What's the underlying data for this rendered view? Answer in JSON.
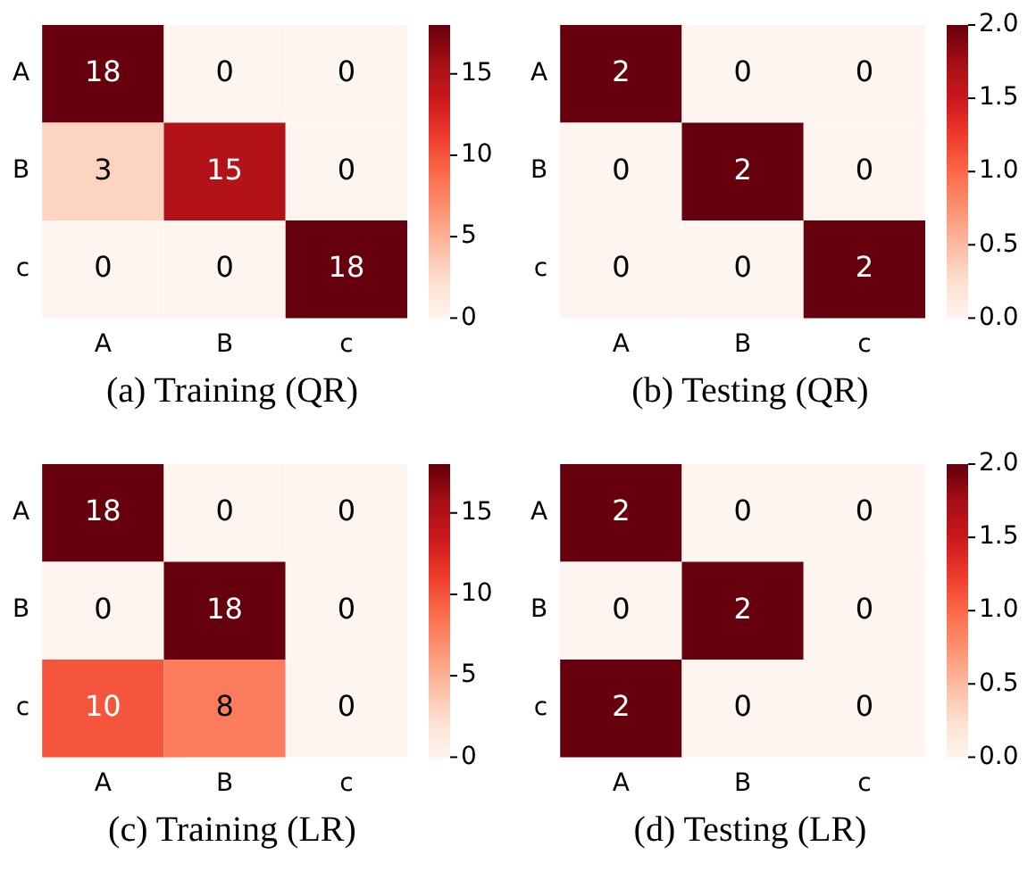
{
  "chart_data": [
    {
      "type": "heatmap",
      "annotations": [
        "(a)  Training (QR)"
      ],
      "categories": [
        "A",
        "B",
        "c"
      ],
      "y_categories": [
        "A",
        "B",
        "c"
      ],
      "cells": [
        [
          18,
          0,
          0
        ],
        [
          3,
          15,
          0
        ],
        [
          0,
          0,
          18
        ]
      ],
      "clim": [
        0,
        18
      ],
      "cticks": [
        0,
        5,
        10,
        15
      ],
      "data_labels": true
    },
    {
      "type": "heatmap",
      "annotations": [
        "(b)  Testing (QR)"
      ],
      "categories": [
        "A",
        "B",
        "c"
      ],
      "y_categories": [
        "A",
        "B",
        "c"
      ],
      "cells": [
        [
          2,
          0,
          0
        ],
        [
          0,
          2,
          0
        ],
        [
          0,
          0,
          2
        ]
      ],
      "clim": [
        0,
        2
      ],
      "cticks": [
        {
          "value": 0,
          "label": "0.0"
        },
        {
          "value": 0.5,
          "label": "0.5"
        },
        {
          "value": 1,
          "label": "1.0"
        },
        {
          "value": 1.5,
          "label": "1.5"
        },
        {
          "value": 2,
          "label": "2.0"
        }
      ],
      "data_labels": true
    },
    {
      "type": "heatmap",
      "annotations": [
        "(c)  Training (LR)"
      ],
      "categories": [
        "A",
        "B",
        "c"
      ],
      "y_categories": [
        "A",
        "B",
        "c"
      ],
      "cells": [
        [
          18,
          0,
          0
        ],
        [
          0,
          18,
          0
        ],
        [
          10,
          8,
          0
        ]
      ],
      "clim": [
        0,
        18
      ],
      "cticks": [
        0,
        5,
        10,
        15
      ],
      "data_labels": true
    },
    {
      "type": "heatmap",
      "annotations": [
        "(d)  Testing (LR)"
      ],
      "categories": [
        "A",
        "B",
        "c"
      ],
      "y_categories": [
        "A",
        "B",
        "c"
      ],
      "cells": [
        [
          2,
          0,
          0
        ],
        [
          0,
          2,
          0
        ],
        [
          2,
          0,
          0
        ]
      ],
      "clim": [
        0,
        2
      ],
      "cticks": [
        {
          "value": 0,
          "label": "0.0"
        },
        {
          "value": 0.5,
          "label": "0.5"
        },
        {
          "value": 1,
          "label": "1.0"
        },
        {
          "value": 1.5,
          "label": "1.5"
        },
        {
          "value": 2,
          "label": "2.0"
        }
      ],
      "data_labels": true
    }
  ]
}
